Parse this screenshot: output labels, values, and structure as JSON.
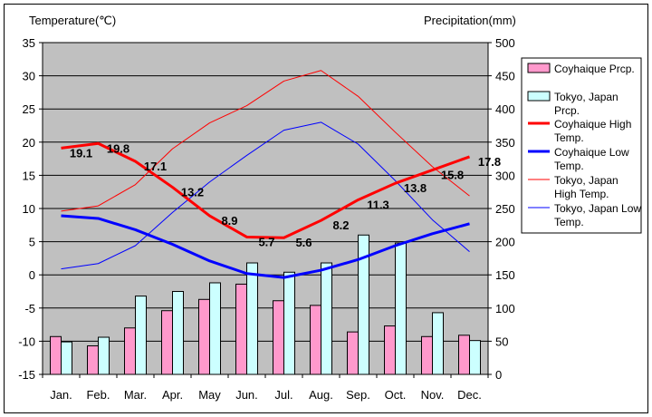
{
  "chart_data": {
    "type": "bar",
    "y_left_label": "Temperature(℃)",
    "y_right_label": "Precipitation(mm)",
    "categories": [
      "Jan.",
      "Feb.",
      "Mar.",
      "Apr.",
      "May",
      "Jun.",
      "Jul.",
      "Aug.",
      "Sep.",
      "Oct.",
      "Nov.",
      "Dec."
    ],
    "y_left_lim": [
      -15,
      35
    ],
    "y_left_ticks": [
      "35",
      "30",
      "25",
      "20",
      "15",
      "10",
      "5",
      "0",
      "-5",
      "-10",
      "-15"
    ],
    "y_right_lim": [
      0,
      500
    ],
    "y_right_ticks": [
      "500",
      "450",
      "400",
      "350",
      "300",
      "250",
      "200",
      "150",
      "100",
      "50",
      "0"
    ],
    "plot_background": "#c0c0c0",
    "grid": true,
    "legend_position": "right",
    "bar_series": [
      {
        "name": "Coyhaique Prcp.",
        "color": "#ff99cc",
        "values": [
          57,
          43,
          70,
          96,
          113,
          136,
          111,
          104,
          64,
          73,
          57,
          59
        ]
      },
      {
        "name": "Tokyo, Japan Prcp.",
        "color": "#ccffff",
        "values": [
          49,
          56,
          118,
          125,
          138,
          168,
          154,
          168,
          210,
          198,
          93,
          51
        ]
      }
    ],
    "line_series": [
      {
        "name": "Coyhaique High Temp.",
        "color": "#ff0000",
        "width": 3,
        "values": [
          19.1,
          19.8,
          17.1,
          13.2,
          8.9,
          5.7,
          5.6,
          8.2,
          11.3,
          13.8,
          15.8,
          17.8
        ],
        "labels": [
          "19.1",
          "19.8",
          "17.1",
          "13.2",
          "8.9",
          "5.7",
          "5.6",
          "8.2",
          "11.3",
          "13.8",
          "15.8",
          "17.8"
        ]
      },
      {
        "name": "Coyhaique Low Temp.",
        "color": "#0000ff",
        "width": 3,
        "values": [
          8.9,
          8.5,
          6.8,
          4.6,
          2.1,
          0.2,
          -0.4,
          0.7,
          2.3,
          4.4,
          6.2,
          7.7
        ]
      },
      {
        "name": "Tokyo, Japan High Temp.",
        "color": "#ff0000",
        "width": 1,
        "values": [
          9.6,
          10.4,
          13.6,
          19.0,
          22.9,
          25.5,
          29.2,
          30.8,
          26.9,
          21.5,
          16.3,
          11.9
        ]
      },
      {
        "name": "Tokyo, Japan Low Temp.",
        "color": "#0000ff",
        "width": 1,
        "values": [
          0.9,
          1.7,
          4.4,
          9.4,
          14.0,
          18.0,
          21.8,
          23.0,
          19.7,
          14.2,
          8.3,
          3.5
        ]
      }
    ]
  }
}
